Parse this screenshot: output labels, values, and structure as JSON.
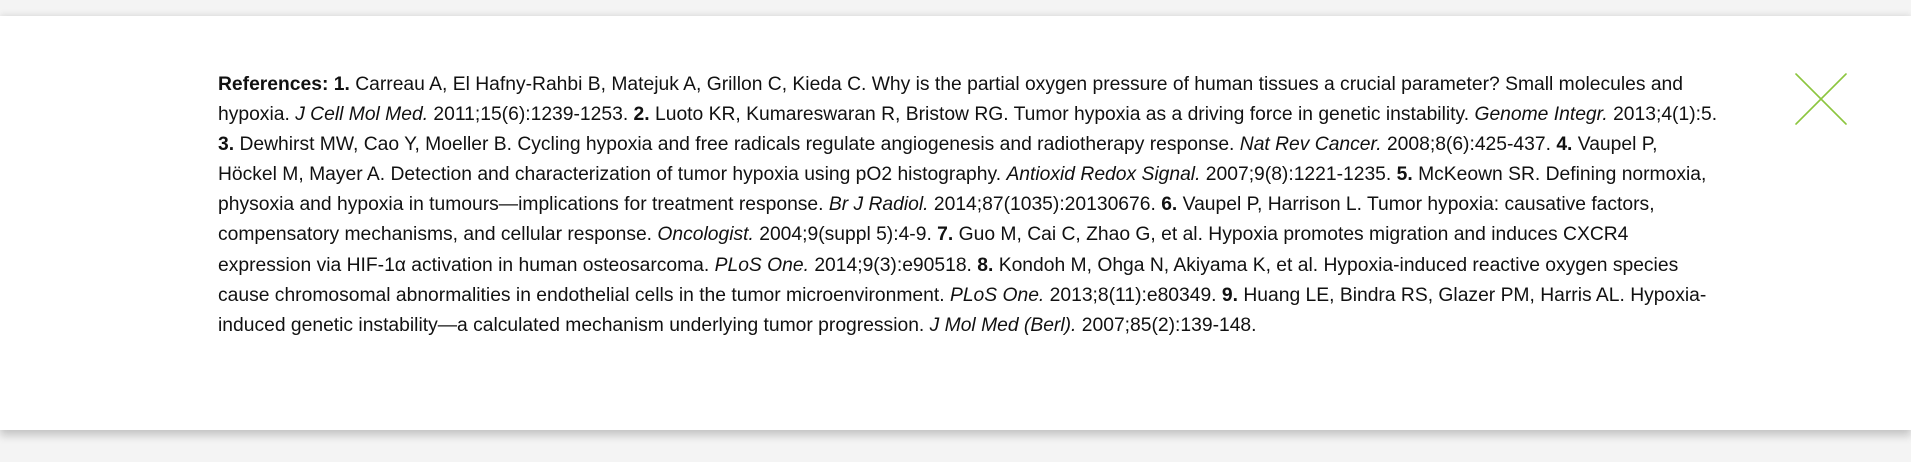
{
  "modal": {
    "close_icon": "close-icon",
    "accent_color": "#8cc63f",
    "heading": "References:",
    "references": [
      {
        "number": "1.",
        "text": "Carreau A, El Hafny-Rahbi B, Matejuk A, Grillon C, Kieda C. Why is the partial oxygen pressure of human tissues a crucial parameter? Small molecules and hypoxia.",
        "journal": "J Cell Mol Med.",
        "citation": "2011;15(6):1239-1253."
      },
      {
        "number": "2.",
        "text": "Luoto KR, Kumareswaran R, Bristow RG. Tumor hypoxia as a driving force in genetic instability.",
        "journal": "Genome Integr.",
        "citation": "2013;4(1):5."
      },
      {
        "number": "3.",
        "text": "Dewhirst MW, Cao Y, Moeller B. Cycling hypoxia and free radicals regulate angiogenesis and radiotherapy response.",
        "journal": "Nat Rev Cancer.",
        "citation": "2008;8(6):425-437."
      },
      {
        "number": "4.",
        "text": "Vaupel P, Höckel M, Mayer A. Detection and characterization of tumor hypoxia using pO2 histography.",
        "journal": "Antioxid Redox Signal.",
        "citation": "2007;9(8):1221-1235."
      },
      {
        "number": "5.",
        "text": "McKeown SR. Defining normoxia, physoxia and hypoxia in tumours—implications for treatment response.",
        "journal": "Br J Radiol.",
        "citation": "2014;87(1035):20130676."
      },
      {
        "number": "6.",
        "text": "Vaupel P, Harrison L. Tumor hypoxia: causative factors, compensatory mechanisms, and cellular response.",
        "journal": "Oncologist.",
        "citation": "2004;9(suppl 5):4-9."
      },
      {
        "number": "7.",
        "text": "Guo M, Cai C, Zhao G, et al. Hypoxia promotes migration and induces CXCR4 expression via HIF-1α activation in human osteosarcoma.",
        "journal": "PLoS One.",
        "citation": "2014;9(3):e90518."
      },
      {
        "number": "8.",
        "text": "Kondoh M, Ohga N, Akiyama K, et al. Hypoxia-induced reactive oxygen species cause chromosomal abnormalities in endothelial cells in the tumor microenvironment.",
        "journal": "PLoS One.",
        "citation": "2013;8(11):e80349."
      },
      {
        "number": "9.",
        "text": "Huang LE, Bindra RS, Glazer PM, Harris AL. Hypoxia-induced genetic instability—a calculated mechanism underlying tumor progression.",
        "journal": "J Mol Med (Berl).",
        "citation": "2007;85(2):139-148."
      }
    ]
  }
}
